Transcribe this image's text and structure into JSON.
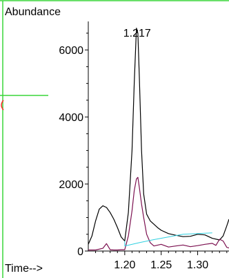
{
  "chart_data": {
    "type": "line",
    "title": "",
    "ylabel": "Abundance",
    "xlabel": "Time-->",
    "xlim": [
      1.15,
      1.343
    ],
    "ylim": [
      0,
      6850
    ],
    "xticks": [
      1.2,
      1.25,
      1.3
    ],
    "xtick_labels": [
      "1.20",
      "1.25",
      "1.30"
    ],
    "yticks": [
      0,
      2000,
      4000,
      6000
    ],
    "ytick_labels": [
      "0",
      "2000",
      "4000",
      "6000"
    ],
    "annotations": [
      {
        "text": "1.217",
        "x": 1.217,
        "y": 6650
      }
    ],
    "colors": {
      "frame": "#39d639",
      "series_black": "#000000",
      "series_purple": "#7b0f4f",
      "baseline": "#2fd0e0",
      "partial_mark": "#ff2b2b"
    },
    "series": [
      {
        "x": [
          1.15,
          1.155,
          1.16,
          1.165,
          1.17,
          1.175,
          1.18,
          1.185,
          1.19,
          1.195,
          1.2,
          1.205,
          1.21,
          1.213,
          1.216,
          1.218,
          1.22,
          1.223,
          1.226,
          1.23,
          1.235,
          1.24,
          1.245,
          1.25,
          1.26,
          1.27,
          1.28,
          1.29,
          1.3,
          1.31,
          1.32,
          1.33,
          1.335,
          1.34,
          1.343
        ],
        "values": [
          200,
          450,
          900,
          1250,
          1350,
          1300,
          1150,
          950,
          700,
          420,
          300,
          1150,
          3000,
          5000,
          6650,
          6500,
          5200,
          3000,
          1700,
          1100,
          900,
          800,
          700,
          620,
          520,
          470,
          430,
          440,
          500,
          480,
          380,
          330,
          450,
          750,
          950
        ]
      },
      {
        "x": [
          1.15,
          1.16,
          1.17,
          1.175,
          1.18,
          1.185,
          1.19,
          1.195,
          1.2,
          1.205,
          1.21,
          1.213,
          1.216,
          1.218,
          1.22,
          1.223,
          1.226,
          1.23,
          1.235,
          1.24,
          1.25,
          1.26,
          1.27,
          1.28,
          1.29,
          1.3,
          1.31,
          1.32,
          1.325,
          1.33,
          1.335,
          1.34,
          1.343
        ],
        "values": [
          30,
          30,
          80,
          220,
          40,
          30,
          30,
          40,
          40,
          450,
          1200,
          1800,
          2150,
          2200,
          1900,
          1400,
          1000,
          500,
          250,
          150,
          200,
          120,
          150,
          180,
          130,
          160,
          200,
          230,
          170,
          350,
          300,
          110,
          90
        ]
      },
      {
        "x": [
          1.2,
          1.22,
          1.24,
          1.26,
          1.28,
          1.3,
          1.32
        ],
        "values": [
          150,
          250,
          340,
          420,
          500,
          520,
          540
        ]
      }
    ]
  }
}
